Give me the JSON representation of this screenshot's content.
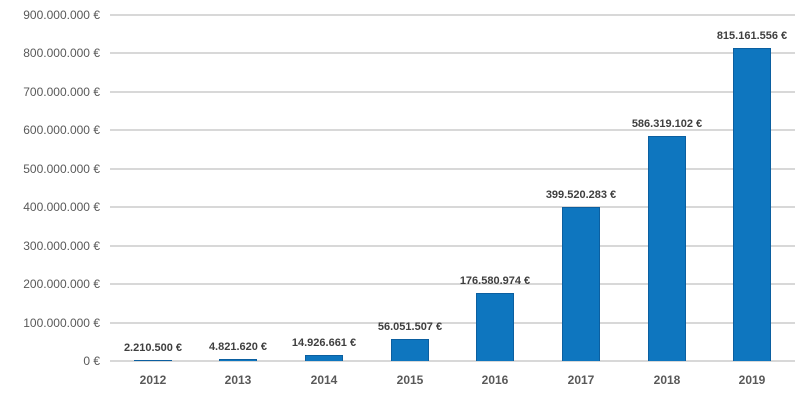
{
  "chart_data": {
    "type": "bar",
    "title": "",
    "xlabel": "",
    "ylabel": "",
    "categories": [
      "2012",
      "2013",
      "2014",
      "2015",
      "2016",
      "2017",
      "2018",
      "2019"
    ],
    "values": [
      2210500,
      4821620,
      14926661,
      56051507,
      176580974,
      399520283,
      586319102,
      815161556
    ],
    "data_labels": [
      "2.210.500 €",
      "4.821.620 €",
      "14.926.661 €",
      "56.051.507 €",
      "176.580.974 €",
      "399.520.283 €",
      "586.319.102 €",
      "815.161.556 €"
    ],
    "ylim": [
      0,
      900000000
    ],
    "y_tick_step": 100000000,
    "y_tick_labels": [
      "0 €",
      "100.000.000 €",
      "200.000.000 €",
      "300.000.000 €",
      "400.000.000 €",
      "500.000.000 €",
      "600.000.000 €",
      "700.000.000 €",
      "800.000.000 €",
      "900.000.000 €"
    ],
    "grid": true,
    "legend": false,
    "colors": {
      "bar_fill": "#0e76bf",
      "bar_border": "#0b5fa0",
      "gridline": "#d8d8d8",
      "axis_tick_text": "#595959",
      "data_label_text": "#3f3f3f",
      "background": "#ffffff"
    }
  }
}
